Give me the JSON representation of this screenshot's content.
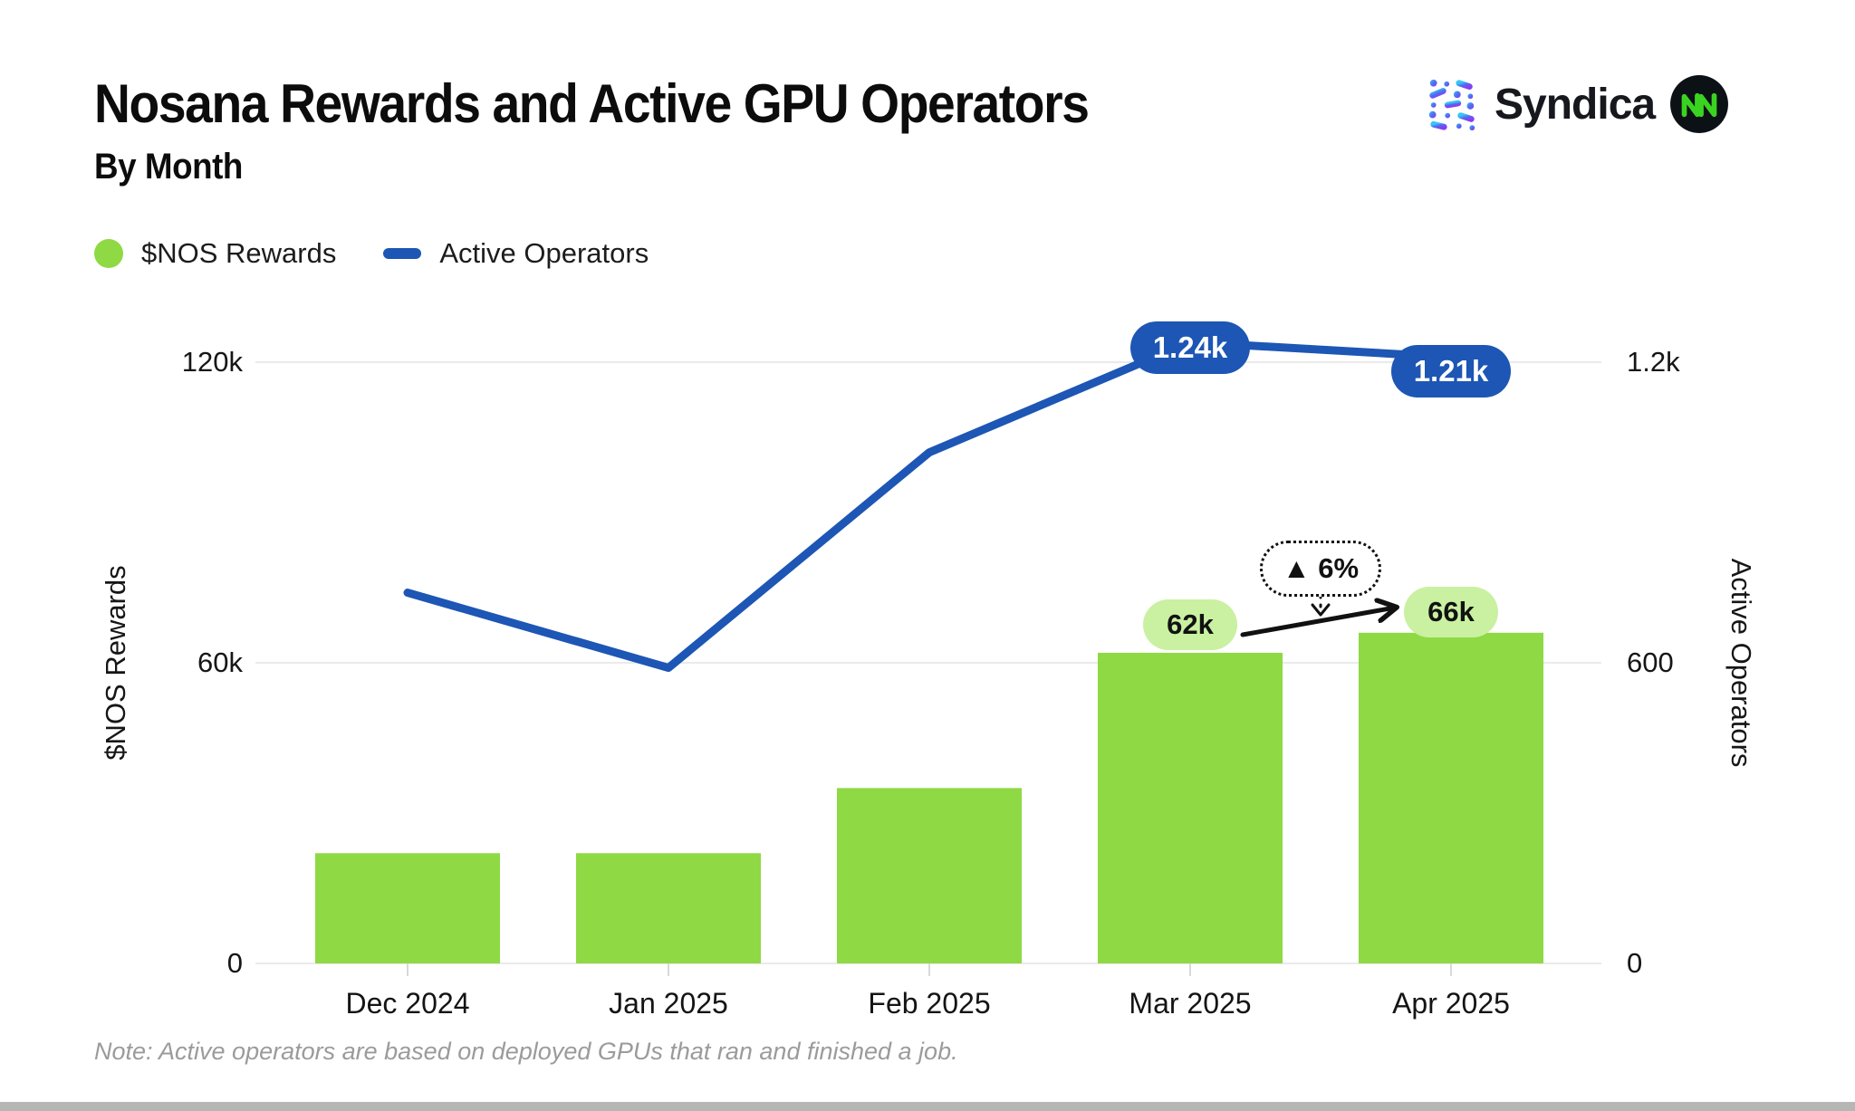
{
  "header": {
    "title": "Nosana Rewards and Active GPU Operators",
    "subtitle": "By Month"
  },
  "brand": {
    "syndica_label": "Syndica",
    "syndica_icon": "syndica-dot-matrix-logo",
    "nosana_icon": "nosana-circle-logo",
    "colors": {
      "syndica_text": "#16181d",
      "syndica_gradient_start": "#38c6f4",
      "syndica_gradient_end": "#8a3df2",
      "nosana_green": "#3bd321",
      "nosana_circle": "#0c1116"
    }
  },
  "legend": {
    "items": [
      {
        "label": "$NOS Rewards",
        "swatch": "dot",
        "color": "#8ed944"
      },
      {
        "label": "Active Operators",
        "swatch": "dash",
        "color": "#1d56b4"
      }
    ]
  },
  "chart_data": {
    "type": "combo bar+line",
    "categories": [
      "Dec 2024",
      "Jan 2025",
      "Feb 2025",
      "Mar 2025",
      "Apr 2025"
    ],
    "series": [
      {
        "name": "$NOS Rewards",
        "type": "bar",
        "axis": "left",
        "color": "#8ed944",
        "values": [
          22000,
          22000,
          35000,
          62000,
          66000
        ],
        "point_labels": [
          "",
          "",
          "",
          "62k",
          "66k"
        ],
        "point_label_bg": "#c9f1a1"
      },
      {
        "name": "Active Operators",
        "type": "line",
        "axis": "right",
        "color": "#1d56b4",
        "values": [
          740,
          590,
          1020,
          1240,
          1210
        ],
        "point_labels": [
          "",
          "",
          "",
          "1.24k",
          "1.21k"
        ],
        "point_label_bg": "#1d56b4"
      }
    ],
    "left_axis": {
      "title": "$NOS Rewards",
      "range": [
        0,
        120000
      ],
      "ticks": [
        {
          "value": 0,
          "label": "0"
        },
        {
          "value": 60000,
          "label": "60k"
        },
        {
          "value": 120000,
          "label": "120k"
        }
      ]
    },
    "right_axis": {
      "title": "Active Operators",
      "range": [
        0,
        1200
      ],
      "ticks": [
        {
          "value": 0,
          "label": "0"
        },
        {
          "value": 600,
          "label": "600"
        },
        {
          "value": 1200,
          "label": "1.2k"
        }
      ]
    },
    "annotation": {
      "label": "▲ 6%",
      "from_category": "Mar 2025",
      "from_label": "62k",
      "to_category": "Apr 2025",
      "to_label": "66k"
    },
    "grid": "horizontal",
    "legend_position": "top-left",
    "gridline_color": "#eaeaea"
  },
  "note": "Note: Active operators are based on deployed GPUs that ran and finished a job."
}
